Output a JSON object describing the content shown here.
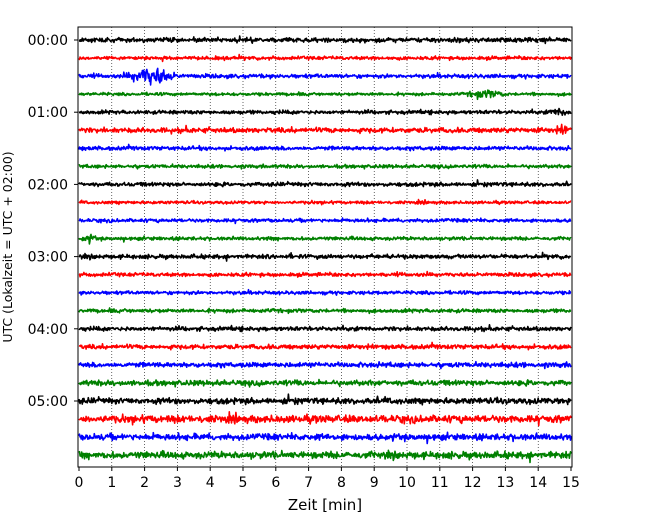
{
  "chart_data": {
    "type": "line",
    "title": "",
    "xlabel": "Zeit  [min]",
    "ylabel": "UTC (Lokalzeit = UTC + 02:00)",
    "xlim": [
      0,
      15
    ],
    "x_ticks": [
      "0",
      "1",
      "2",
      "3",
      "4",
      "5",
      "6",
      "7",
      "8",
      "9",
      "10",
      "11",
      "12",
      "13",
      "14",
      "15"
    ],
    "y_tick_labels": [
      "00:00",
      "01:00",
      "02:00",
      "03:00",
      "04:00",
      "05:00"
    ],
    "trace_interval_min": 15,
    "traces_per_hour": 4,
    "trace_colors": [
      "#000000",
      "#ff0000",
      "#0000ff",
      "#008000"
    ],
    "grid": "vertical dotted",
    "series": [
      {
        "start": "00:00",
        "color": "black",
        "amplitude": 0.18
      },
      {
        "start": "00:15",
        "color": "red",
        "amplitude": 0.14
      },
      {
        "start": "00:30",
        "color": "blue",
        "amplitude": 0.16,
        "burst": {
          "from": 0.9,
          "to": 3.4,
          "peak": 2.2,
          "amplitude": 0.75
        }
      },
      {
        "start": "00:45",
        "color": "green",
        "amplitude": 0.12,
        "burst": {
          "from": 11.5,
          "to": 13.6,
          "peak": 12.4,
          "amplitude": 0.35
        }
      },
      {
        "start": "01:00",
        "color": "black",
        "amplitude": 0.15,
        "burst": {
          "from": 13.8,
          "to": 15,
          "peak": 14.7,
          "amplitude": 0.35
        }
      },
      {
        "start": "01:15",
        "color": "red",
        "amplitude": 0.2,
        "burst": {
          "from": 14.2,
          "to": 15,
          "peak": 14.8,
          "amplitude": 0.45
        }
      },
      {
        "start": "01:30",
        "color": "blue",
        "amplitude": 0.16
      },
      {
        "start": "01:45",
        "color": "green",
        "amplitude": 0.14
      },
      {
        "start": "02:00",
        "color": "black",
        "amplitude": 0.16
      },
      {
        "start": "02:15",
        "color": "red",
        "amplitude": 0.12
      },
      {
        "start": "02:30",
        "color": "blue",
        "amplitude": 0.14
      },
      {
        "start": "02:45",
        "color": "green",
        "amplitude": 0.14,
        "burst": {
          "from": 0.0,
          "to": 0.8,
          "peak": 0.3,
          "amplitude": 0.35
        }
      },
      {
        "start": "03:00",
        "color": "black",
        "amplitude": 0.17
      },
      {
        "start": "03:15",
        "color": "red",
        "amplitude": 0.15
      },
      {
        "start": "03:30",
        "color": "blue",
        "amplitude": 0.14
      },
      {
        "start": "03:45",
        "color": "green",
        "amplitude": 0.15
      },
      {
        "start": "04:00",
        "color": "black",
        "amplitude": 0.17
      },
      {
        "start": "04:15",
        "color": "red",
        "amplitude": 0.18
      },
      {
        "start": "04:30",
        "color": "blue",
        "amplitude": 0.2
      },
      {
        "start": "04:45",
        "color": "green",
        "amplitude": 0.22
      },
      {
        "start": "05:00",
        "color": "black",
        "amplitude": 0.24
      },
      {
        "start": "05:15",
        "color": "red",
        "amplitude": 0.3
      },
      {
        "start": "05:30",
        "color": "blue",
        "amplitude": 0.26
      },
      {
        "start": "05:45",
        "color": "green",
        "amplitude": 0.28
      }
    ]
  }
}
